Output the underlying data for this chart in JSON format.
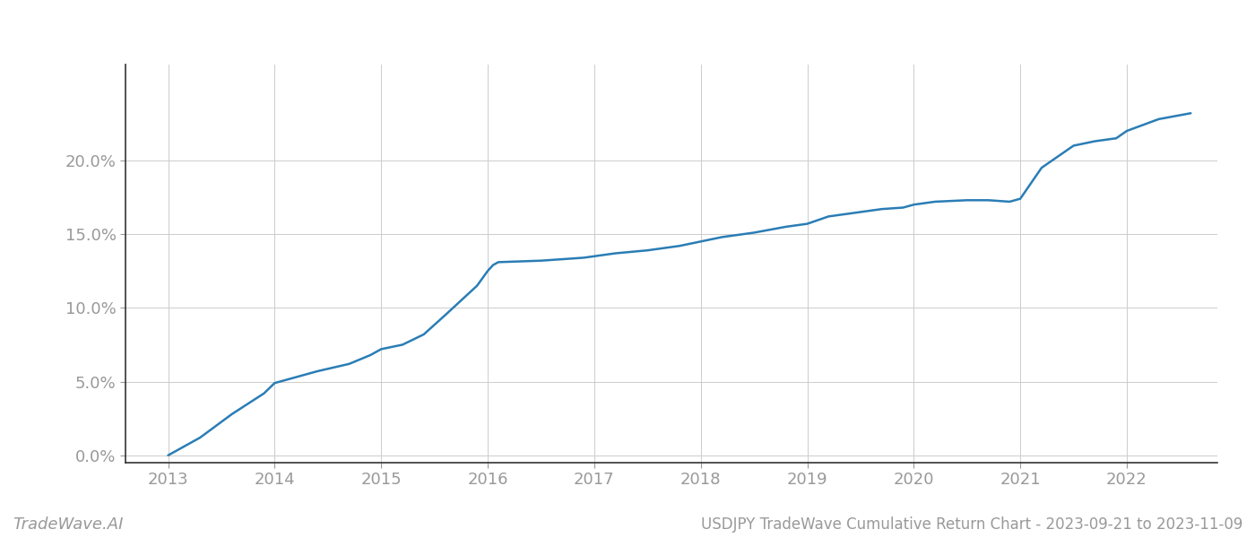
{
  "title_bottom": "USDJPY TradeWave Cumulative Return Chart - 2023-09-21 to 2023-11-09",
  "watermark": "TradeWave.AI",
  "line_color": "#2a7db5",
  "line_width": 1.8,
  "background_color": "#ffffff",
  "grid_color": "#cccccc",
  "x_values": [
    2013.0,
    2013.1,
    2013.3,
    2013.6,
    2013.9,
    2014.0,
    2014.2,
    2014.4,
    2014.7,
    2014.9,
    2015.0,
    2015.2,
    2015.4,
    2015.6,
    2015.9,
    2016.0,
    2016.05,
    2016.1,
    2016.5,
    2016.7,
    2016.9,
    2017.0,
    2017.2,
    2017.5,
    2017.8,
    2018.0,
    2018.2,
    2018.5,
    2018.8,
    2019.0,
    2019.2,
    2019.5,
    2019.7,
    2019.9,
    2020.0,
    2020.2,
    2020.5,
    2020.7,
    2020.9,
    2021.0,
    2021.2,
    2021.5,
    2021.7,
    2021.9,
    2022.0,
    2022.3,
    2022.6
  ],
  "y_values": [
    0.0,
    0.4,
    1.2,
    2.8,
    4.2,
    4.9,
    5.3,
    5.7,
    6.2,
    6.8,
    7.2,
    7.5,
    8.2,
    9.5,
    11.5,
    12.5,
    12.9,
    13.1,
    13.2,
    13.3,
    13.4,
    13.5,
    13.7,
    13.9,
    14.2,
    14.5,
    14.8,
    15.1,
    15.5,
    15.7,
    16.2,
    16.5,
    16.7,
    16.8,
    17.0,
    17.2,
    17.3,
    17.3,
    17.2,
    17.4,
    19.5,
    21.0,
    21.3,
    21.5,
    22.0,
    22.8,
    23.2
  ],
  "xlim": [
    2012.6,
    2022.85
  ],
  "ylim": [
    -0.5,
    26.5
  ],
  "yticks": [
    0.0,
    5.0,
    10.0,
    15.0,
    20.0
  ],
  "ytick_labels": [
    "0.0%",
    "5.0%",
    "10.0%",
    "15.0%",
    "20.0%"
  ],
  "xticks": [
    2013,
    2014,
    2015,
    2016,
    2017,
    2018,
    2019,
    2020,
    2021,
    2022
  ],
  "xtick_labels": [
    "2013",
    "2014",
    "2015",
    "2016",
    "2017",
    "2018",
    "2019",
    "2020",
    "2021",
    "2022"
  ],
  "tick_color": "#999999",
  "spine_color": "#333333",
  "label_fontsize": 13,
  "watermark_fontsize": 13,
  "title_fontsize": 12
}
